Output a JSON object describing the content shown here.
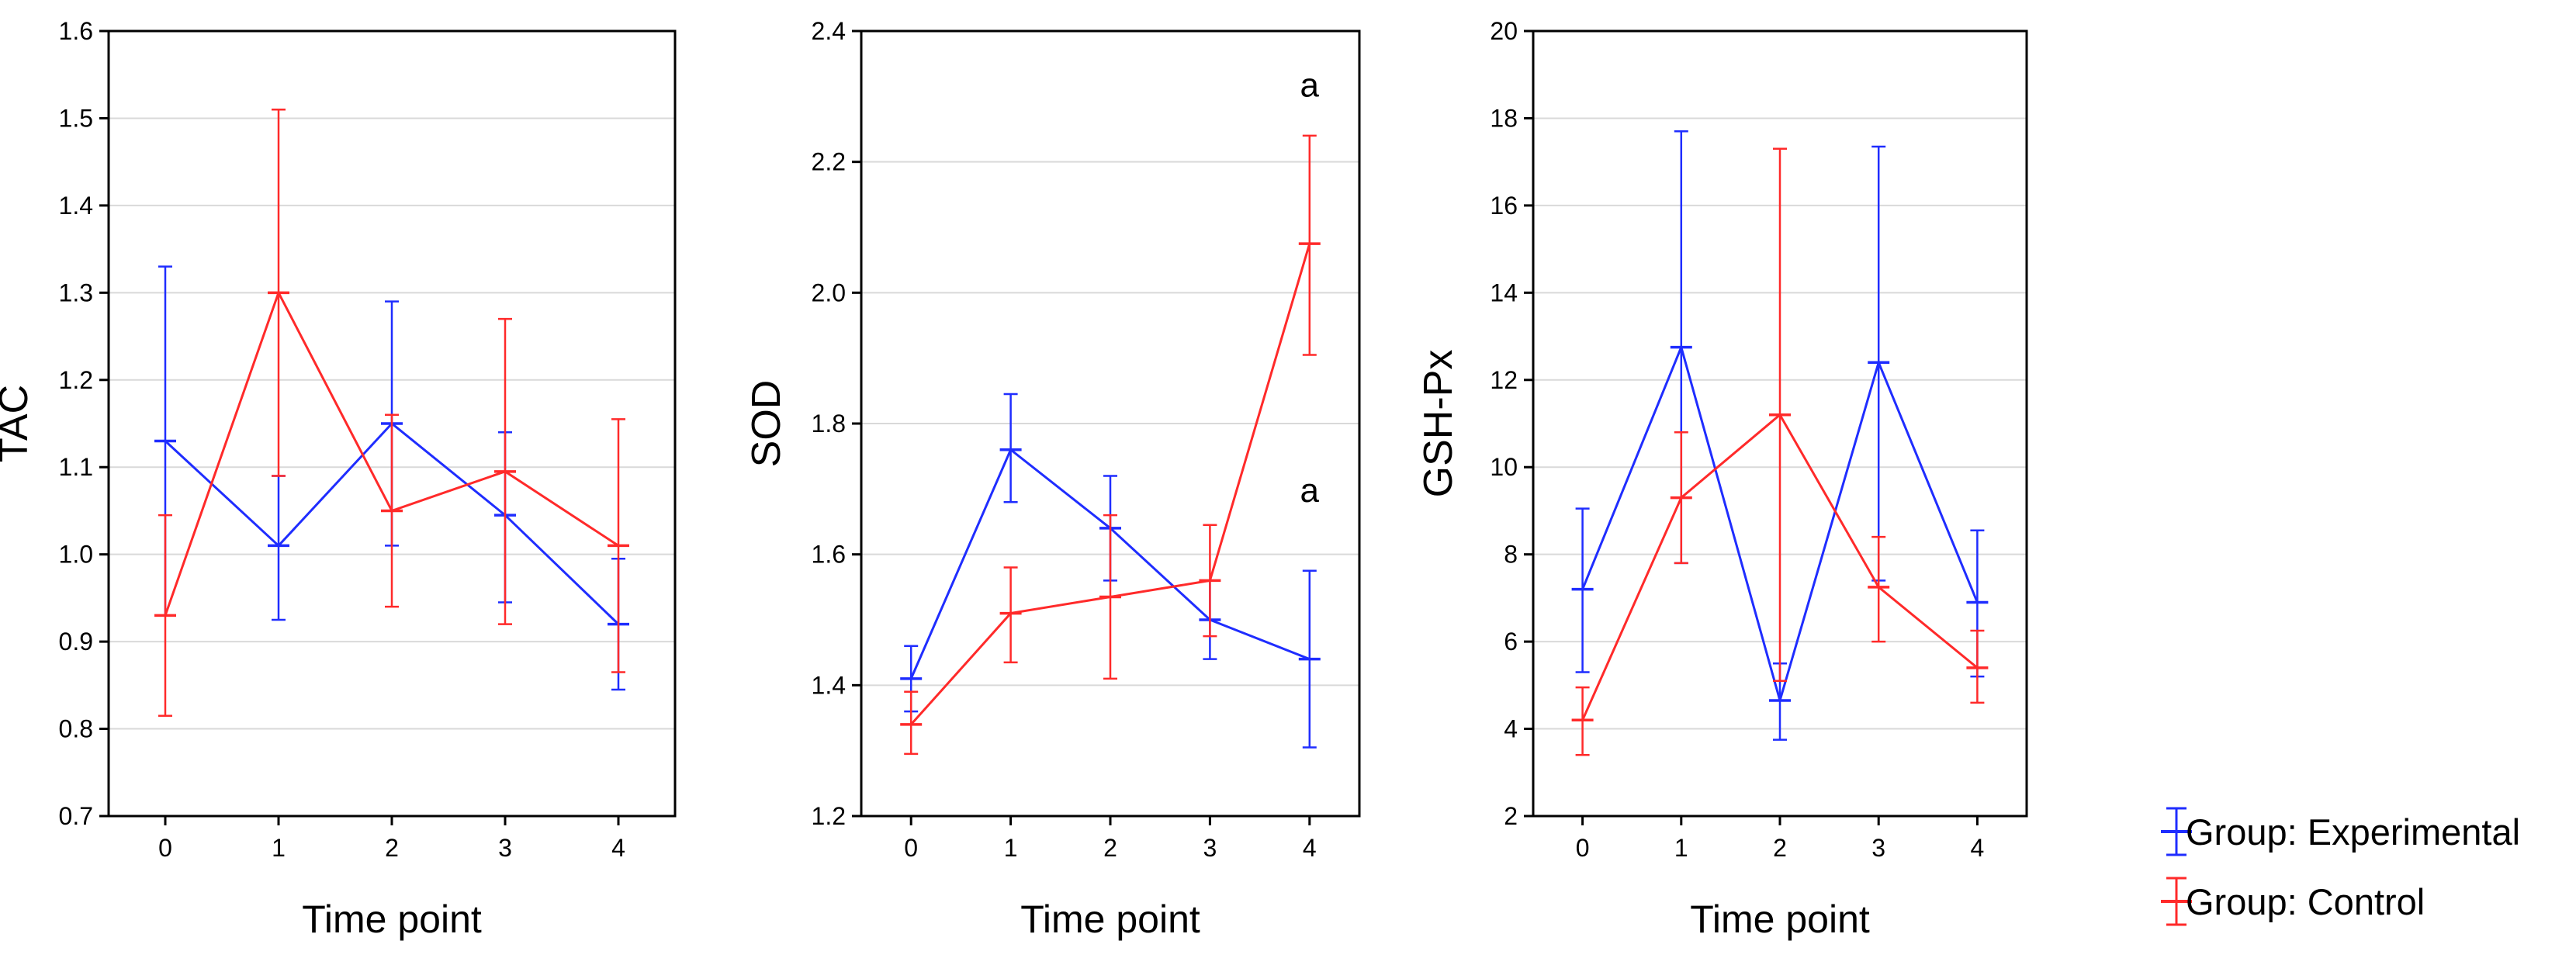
{
  "colors": {
    "experimental": "#1f2dff",
    "control": "#ff2a2a",
    "grid": "#d9d9d9",
    "axis": "#000000",
    "text": "#000000"
  },
  "legend": {
    "items": [
      {
        "label": "Group: Experimental",
        "color_key": "experimental"
      },
      {
        "label": "Group: Control",
        "color_key": "control"
      }
    ]
  },
  "chart_data": [
    {
      "type": "line",
      "title": "",
      "xlabel": "Time point",
      "ylabel": "TAC",
      "categories": [
        "0",
        "1",
        "2",
        "3",
        "4"
      ],
      "ylim": [
        0.7,
        1.6
      ],
      "yticks": [
        0.7,
        0.8,
        0.9,
        1.0,
        1.1,
        1.2,
        1.3,
        1.4,
        1.5,
        1.6
      ],
      "ytick_labels": [
        "0.7",
        "0.8",
        "0.9",
        "1.0",
        "1.1",
        "1.2",
        "1.3",
        "1.4",
        "1.5",
        "1.6"
      ],
      "grid": true,
      "series": [
        {
          "name": "Group: Experimental",
          "color_key": "experimental",
          "values": [
            1.13,
            1.01,
            1.15,
            1.045,
            0.92
          ],
          "lower": [
            0.93,
            0.925,
            1.01,
            0.945,
            0.845
          ],
          "upper": [
            1.33,
            1.09,
            1.29,
            1.14,
            0.995
          ]
        },
        {
          "name": "Group: Control",
          "color_key": "control",
          "values": [
            0.93,
            1.3,
            1.05,
            1.095,
            1.01
          ],
          "lower": [
            0.815,
            1.09,
            0.94,
            0.92,
            0.865
          ],
          "upper": [
            1.045,
            1.51,
            1.16,
            1.27,
            1.155
          ]
        }
      ],
      "annotations": []
    },
    {
      "type": "line",
      "title": "",
      "xlabel": "Time point",
      "ylabel": "SOD",
      "categories": [
        "0",
        "1",
        "2",
        "3",
        "4"
      ],
      "ylim": [
        1.2,
        2.4
      ],
      "yticks": [
        1.2,
        1.4,
        1.6,
        1.8,
        2.0,
        2.2,
        2.4
      ],
      "ytick_labels": [
        "1.2",
        "1.4",
        "1.6",
        "1.8",
        "2.0",
        "2.2",
        "2.4"
      ],
      "grid": true,
      "series": [
        {
          "name": "Group: Experimental",
          "color_key": "experimental",
          "values": [
            1.41,
            1.76,
            1.64,
            1.5,
            1.44
          ],
          "lower": [
            1.36,
            1.68,
            1.56,
            1.44,
            1.305
          ],
          "upper": [
            1.46,
            1.845,
            1.72,
            1.56,
            1.575
          ]
        },
        {
          "name": "Group: Control",
          "color_key": "control",
          "values": [
            1.34,
            1.51,
            1.535,
            1.56,
            2.075
          ],
          "lower": [
            1.295,
            1.435,
            1.41,
            1.475,
            1.905
          ],
          "upper": [
            1.39,
            1.58,
            1.66,
            1.645,
            2.24
          ]
        }
      ],
      "annotations": [
        {
          "text": "a",
          "x": "4",
          "y": 2.3
        },
        {
          "text": "a",
          "x": "4",
          "y": 1.68
        }
      ]
    },
    {
      "type": "line",
      "title": "",
      "xlabel": "Time point",
      "ylabel": "GSH-Px",
      "categories": [
        "0",
        "1",
        "2",
        "3",
        "4"
      ],
      "ylim": [
        2,
        20
      ],
      "yticks": [
        2,
        4,
        6,
        8,
        10,
        12,
        14,
        16,
        18,
        20
      ],
      "ytick_labels": [
        "2",
        "4",
        "6",
        "8",
        "10",
        "12",
        "14",
        "16",
        "18",
        "20"
      ],
      "grid": true,
      "series": [
        {
          "name": "Group: Experimental",
          "color_key": "experimental",
          "values": [
            7.2,
            12.75,
            4.65,
            12.4,
            6.9
          ],
          "lower": [
            5.3,
            7.8,
            3.75,
            7.4,
            5.2
          ],
          "upper": [
            9.05,
            17.7,
            5.5,
            17.35,
            8.55
          ]
        },
        {
          "name": "Group: Control",
          "color_key": "control",
          "values": [
            4.2,
            9.3,
            11.2,
            7.25,
            5.4
          ],
          "lower": [
            3.4,
            7.8,
            5.1,
            6.0,
            4.6
          ],
          "upper": [
            4.95,
            10.8,
            17.3,
            8.4,
            6.25
          ]
        }
      ],
      "annotations": []
    }
  ]
}
